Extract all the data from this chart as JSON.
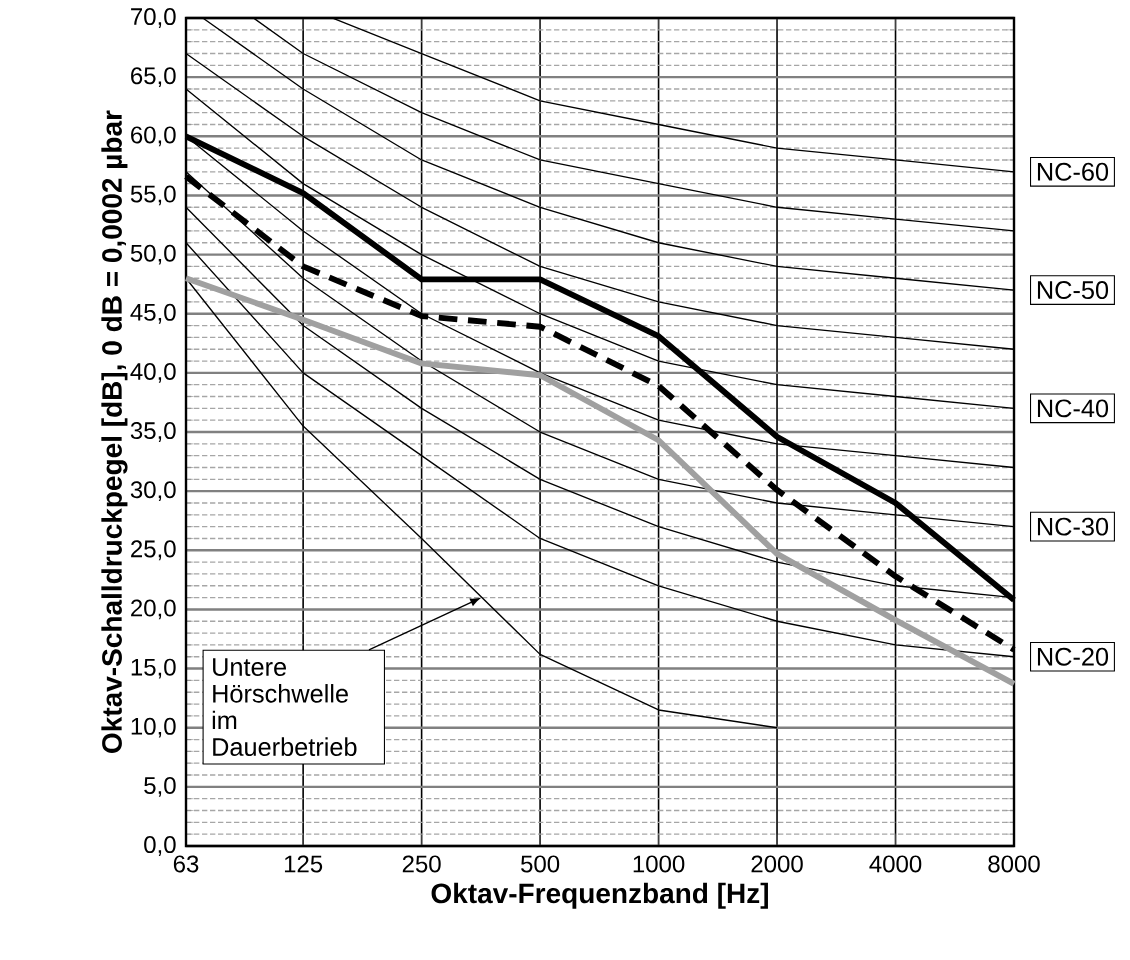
{
  "chart_data": {
    "type": "line",
    "xlabel": "Oktav-Frequenzband [Hz]",
    "ylabel": "Oktav-Schalldruckpegel [dB], 0 dB = 0,0002 µbar",
    "log": "x",
    "grid": true,
    "x": [
      63,
      125,
      250,
      500,
      1000,
      2000,
      4000,
      8000
    ],
    "xlim": [
      63,
      8000
    ],
    "xticks": [
      63,
      125,
      250,
      500,
      1000,
      2000,
      4000,
      8000
    ],
    "ylim": [
      0,
      70
    ],
    "yticks": [
      {
        "value": 0,
        "label": "0,0"
      },
      {
        "value": 5,
        "label": "5,0"
      },
      {
        "value": 10,
        "label": "10,0"
      },
      {
        "value": 15,
        "label": "15,0"
      },
      {
        "value": 20,
        "label": "20,0"
      },
      {
        "value": 25,
        "label": "25,0"
      },
      {
        "value": 30,
        "label": "30,0"
      },
      {
        "value": 35,
        "label": "35,0"
      },
      {
        "value": 40,
        "label": "40,0"
      },
      {
        "value": 45,
        "label": "45,0"
      },
      {
        "value": 50,
        "label": "50,0"
      },
      {
        "value": 55,
        "label": "55,0"
      },
      {
        "value": 60,
        "label": "60,0"
      },
      {
        "value": 65,
        "label": "65,0"
      },
      {
        "value": 70,
        "label": "70,0"
      }
    ],
    "annotations": [
      {
        "text": "Untere Hörschwelle im Dauerbetrieb",
        "x": 355,
        "y": 21
      }
    ],
    "series": [
      {
        "name": "NC-20",
        "color": "#000000",
        "values": [
          51,
          40,
          33,
          26,
          22,
          19,
          17,
          16
        ]
      },
      {
        "color": "#000000",
        "values": [
          54,
          44,
          37,
          31,
          27,
          24,
          22,
          21
        ]
      },
      {
        "name": "NC-30",
        "color": "#000000",
        "values": [
          57,
          48,
          41,
          35,
          31,
          29,
          28,
          27
        ]
      },
      {
        "color": "#000000",
        "values": [
          60,
          52,
          45,
          40,
          36,
          34,
          33,
          32
        ]
      },
      {
        "name": "NC-40",
        "color": "#000000",
        "values": [
          64,
          56,
          50,
          45,
          41,
          39,
          38,
          37
        ]
      },
      {
        "color": "#000000",
        "values": [
          67,
          60,
          54,
          49,
          46,
          44,
          43,
          42
        ]
      },
      {
        "name": "NC-50",
        "color": "#000000",
        "x": [
          69.5,
          125,
          250,
          500,
          1000,
          2000,
          4000,
          8000
        ],
        "values": [
          70,
          64,
          58,
          54,
          51,
          49,
          48,
          47
        ]
      },
      {
        "color": "#000000",
        "x": [
          93.5,
          125,
          250,
          500,
          1000,
          2000,
          4000,
          8000
        ],
        "values": [
          70,
          67,
          62,
          58,
          56,
          54,
          53,
          52
        ]
      },
      {
        "name": "NC-60",
        "color": "#000000",
        "x": [
          148.6,
          250,
          500,
          1000,
          2000,
          4000,
          8000
        ],
        "values": [
          70,
          67,
          63,
          61,
          59,
          58,
          57
        ]
      },
      {
        "color": "#000000",
        "values": [
          48,
          35.5,
          26,
          16.2,
          11.5,
          10,
          null,
          null
        ]
      },
      {
        "color": "#a0a0a0",
        "line_style": "solid",
        "values": [
          48,
          44.5,
          40.8,
          39.8,
          34.3,
          24.7,
          19.1,
          13.7
        ]
      },
      {
        "color": "#000000",
        "line_style": "dashed",
        "values": [
          56.6,
          49,
          44.8,
          43.9,
          38.9,
          30.1,
          22.8,
          16.6
        ]
      },
      {
        "color": "#000000",
        "line_style": "solid",
        "values": [
          60,
          55.2,
          47.9,
          47.9,
          43.1,
          34.6,
          29,
          20.8
        ]
      }
    ]
  }
}
